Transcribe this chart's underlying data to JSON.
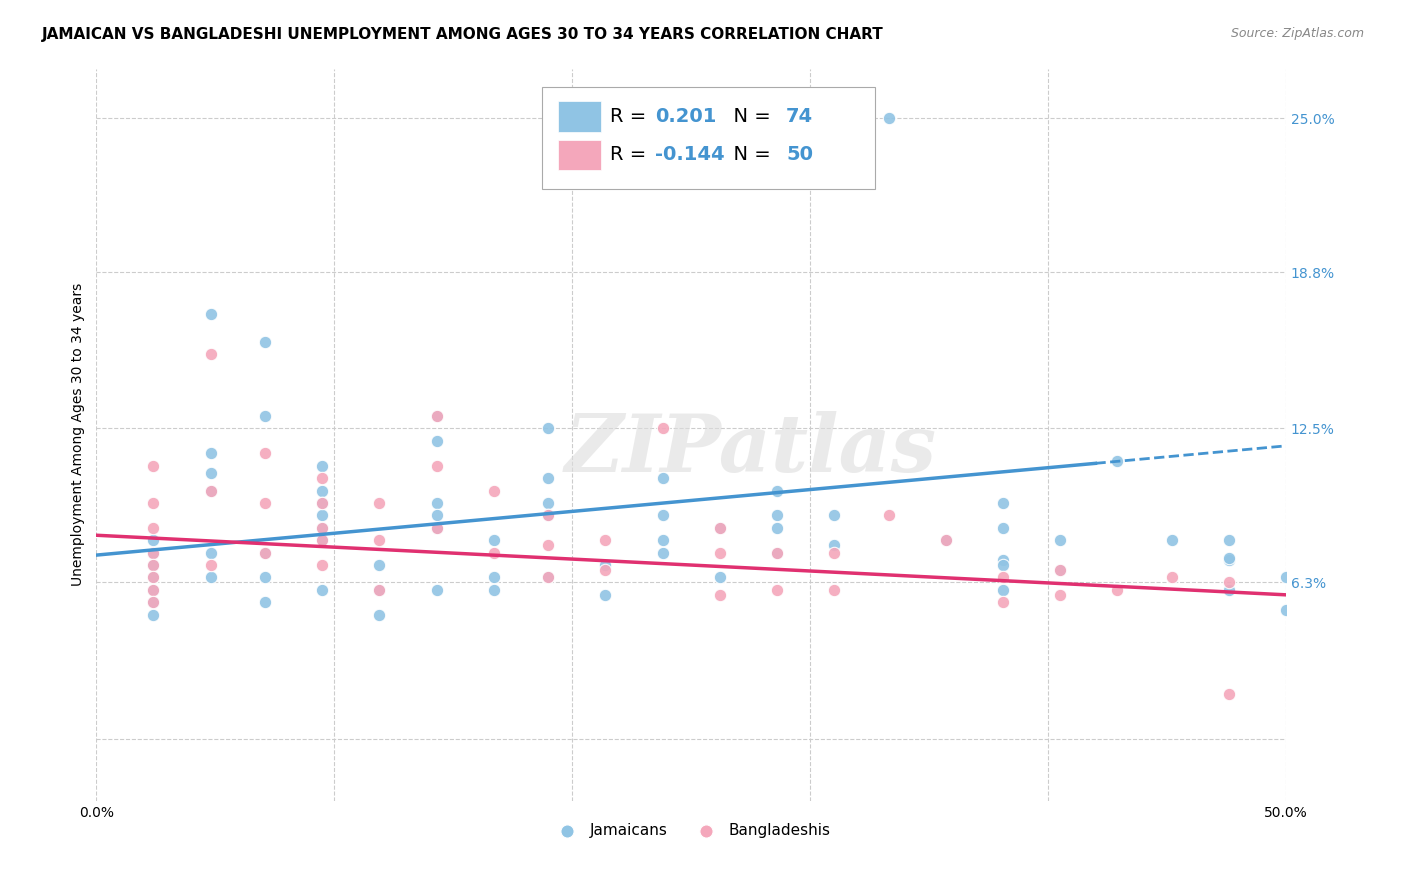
{
  "title": "JAMAICAN VS BANGLADESHI UNEMPLOYMENT AMONG AGES 30 TO 34 YEARS CORRELATION CHART",
  "source": "Source: ZipAtlas.com",
  "ylabel": "Unemployment Among Ages 30 to 34 years",
  "xlim": [
    0.0,
    0.5
  ],
  "ylim": [
    -0.025,
    0.27
  ],
  "y_tick_labels_right": [
    "25.0%",
    "18.8%",
    "12.5%",
    "6.3%"
  ],
  "y_tick_values_right": [
    0.25,
    0.188,
    0.125,
    0.063
  ],
  "blue_color": "#90c4e4",
  "pink_color": "#f4a7bb",
  "blue_line_color": "#4494d0",
  "pink_line_color": "#e03070",
  "legend_R_blue": "0.201",
  "legend_N_blue": "74",
  "legend_R_pink": "-0.144",
  "legend_N_pink": "50",
  "watermark": "ZIPatlas",
  "background_color": "#ffffff",
  "grid_color": "#cccccc",
  "blue_scatter_x": [
    0.333,
    0.048,
    0.071,
    0.071,
    0.048,
    0.048,
    0.143,
    0.048,
    0.095,
    0.095,
    0.095,
    0.095,
    0.095,
    0.095,
    0.19,
    0.19,
    0.19,
    0.19,
    0.143,
    0.143,
    0.143,
    0.143,
    0.238,
    0.238,
    0.286,
    0.286,
    0.286,
    0.238,
    0.381,
    0.381,
    0.381,
    0.476,
    0.476,
    0.476,
    0.024,
    0.024,
    0.024,
    0.024,
    0.024,
    0.024,
    0.024,
    0.048,
    0.048,
    0.071,
    0.071,
    0.071,
    0.095,
    0.119,
    0.119,
    0.119,
    0.143,
    0.143,
    0.167,
    0.167,
    0.167,
    0.19,
    0.214,
    0.214,
    0.238,
    0.262,
    0.262,
    0.286,
    0.31,
    0.31,
    0.357,
    0.381,
    0.381,
    0.405,
    0.405,
    0.429,
    0.452,
    0.476,
    0.5,
    0.5
  ],
  "blue_scatter_y": [
    0.25,
    0.171,
    0.16,
    0.13,
    0.115,
    0.107,
    0.13,
    0.1,
    0.11,
    0.1,
    0.095,
    0.09,
    0.085,
    0.08,
    0.125,
    0.105,
    0.095,
    0.09,
    0.12,
    0.095,
    0.09,
    0.085,
    0.105,
    0.09,
    0.1,
    0.09,
    0.085,
    0.075,
    0.095,
    0.085,
    0.072,
    0.08,
    0.072,
    0.06,
    0.08,
    0.075,
    0.07,
    0.065,
    0.06,
    0.055,
    0.05,
    0.075,
    0.065,
    0.075,
    0.065,
    0.055,
    0.06,
    0.07,
    0.06,
    0.05,
    0.085,
    0.06,
    0.08,
    0.065,
    0.06,
    0.065,
    0.07,
    0.058,
    0.08,
    0.085,
    0.065,
    0.075,
    0.09,
    0.078,
    0.08,
    0.07,
    0.06,
    0.08,
    0.068,
    0.112,
    0.08,
    0.073,
    0.065,
    0.052
  ],
  "pink_scatter_x": [
    0.024,
    0.024,
    0.024,
    0.024,
    0.024,
    0.024,
    0.024,
    0.024,
    0.048,
    0.048,
    0.048,
    0.071,
    0.071,
    0.071,
    0.095,
    0.095,
    0.095,
    0.095,
    0.095,
    0.119,
    0.119,
    0.119,
    0.143,
    0.143,
    0.143,
    0.167,
    0.167,
    0.19,
    0.19,
    0.19,
    0.214,
    0.214,
    0.238,
    0.262,
    0.262,
    0.262,
    0.286,
    0.286,
    0.31,
    0.31,
    0.333,
    0.357,
    0.381,
    0.381,
    0.405,
    0.405,
    0.429,
    0.452,
    0.476,
    0.476
  ],
  "pink_scatter_y": [
    0.11,
    0.095,
    0.085,
    0.075,
    0.07,
    0.065,
    0.06,
    0.055,
    0.155,
    0.1,
    0.07,
    0.115,
    0.095,
    0.075,
    0.105,
    0.095,
    0.085,
    0.08,
    0.07,
    0.095,
    0.08,
    0.06,
    0.13,
    0.11,
    0.085,
    0.1,
    0.075,
    0.09,
    0.078,
    0.065,
    0.08,
    0.068,
    0.125,
    0.085,
    0.075,
    0.058,
    0.075,
    0.06,
    0.075,
    0.06,
    0.09,
    0.08,
    0.065,
    0.055,
    0.068,
    0.058,
    0.06,
    0.065,
    0.063,
    0.018
  ],
  "blue_trend_y_start": 0.074,
  "blue_trend_y_end": 0.118,
  "pink_trend_y_start": 0.082,
  "pink_trend_y_end": 0.058,
  "title_fontsize": 11,
  "scatter_size": 80
}
